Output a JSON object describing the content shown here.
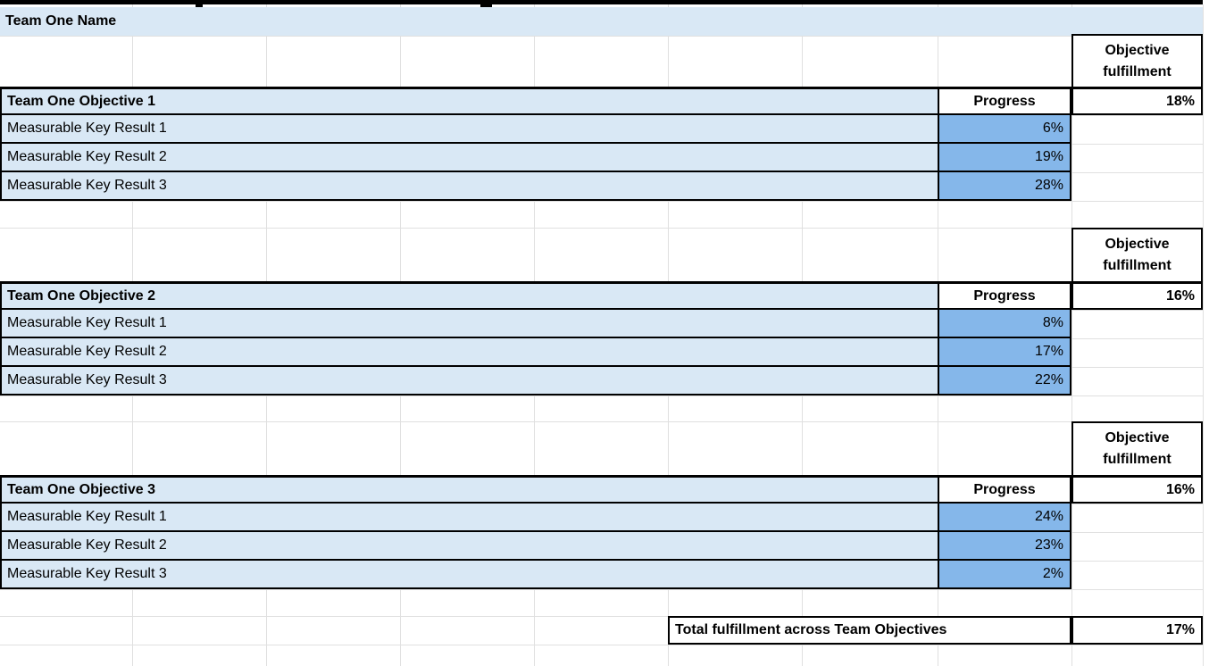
{
  "header": {
    "team_name": "Team One Name"
  },
  "labels": {
    "objective_fulfillment": "Objective fulfillment",
    "progress": "Progress"
  },
  "sections": [
    {
      "objective": "Team One Objective 1",
      "fulfillment": "18%",
      "key_results": [
        {
          "label": "Measurable Key Result 1",
          "progress": "6%"
        },
        {
          "label": "Measurable Key Result 2",
          "progress": "19%"
        },
        {
          "label": "Measurable Key Result 3",
          "progress": "28%"
        }
      ]
    },
    {
      "objective": "Team One Objective 2",
      "fulfillment": "16%",
      "key_results": [
        {
          "label": "Measurable Key Result 1",
          "progress": "8%"
        },
        {
          "label": "Measurable Key Result 2",
          "progress": "17%"
        },
        {
          "label": "Measurable Key Result 3",
          "progress": "22%"
        }
      ]
    },
    {
      "objective": "Team One Objective 3",
      "fulfillment": "16%",
      "key_results": [
        {
          "label": "Measurable Key Result 1",
          "progress": "24%"
        },
        {
          "label": "Measurable Key Result 2",
          "progress": "23%"
        },
        {
          "label": "Measurable Key Result 3",
          "progress": "2%"
        }
      ]
    }
  ],
  "total": {
    "label": "Total fulfillment across Team Objectives",
    "value": "17%"
  },
  "colors": {
    "row_light_blue": "#d9e8f5",
    "progress_cell_blue": "#85b7ea",
    "border_black": "#000000",
    "gridline_gray": "#e0e0e0"
  }
}
